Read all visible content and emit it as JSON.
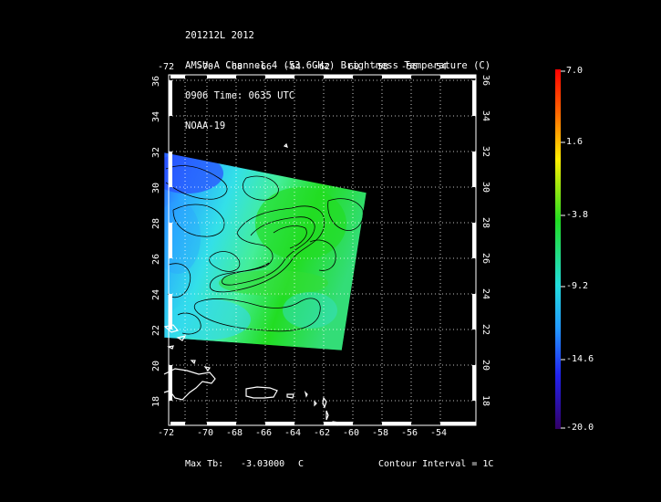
{
  "header": {
    "line1": "201212L 2012",
    "line2": "AMSU-A Channel 4 (53.6GHz) Brightness Temperature (C)",
    "line3": "0906 Time: 0635 UTC",
    "line4": "NOAA-19"
  },
  "map": {
    "lon_ticks": [
      "-72",
      "-70",
      "-68",
      "-66",
      "-64",
      "-62",
      "-60",
      "-58",
      "-56",
      "-54"
    ],
    "lat_ticks": [
      "36",
      "34",
      "32",
      "30",
      "28",
      "26",
      "24",
      "22",
      "20",
      "18"
    ],
    "lon_range": [
      -72.5,
      -52.5
    ],
    "lat_range": [
      16.5,
      36.5
    ]
  },
  "colorbar": {
    "labels": [
      "7.0",
      "1.6",
      "-3.8",
      "-9.2",
      "-14.6",
      "-20.0"
    ],
    "range": [
      -20.0,
      7.0
    ]
  },
  "footer": {
    "max_label": "Max Tb:",
    "max_value": "-3.03000",
    "max_unit": "C",
    "contour": "Contour Interval = 1C"
  },
  "colors": {
    "background": "#000000",
    "frame": "#ffffff",
    "field_cold": "#1a5cff",
    "field_mid": "#33ddcc",
    "field_warm": "#22dd22"
  }
}
